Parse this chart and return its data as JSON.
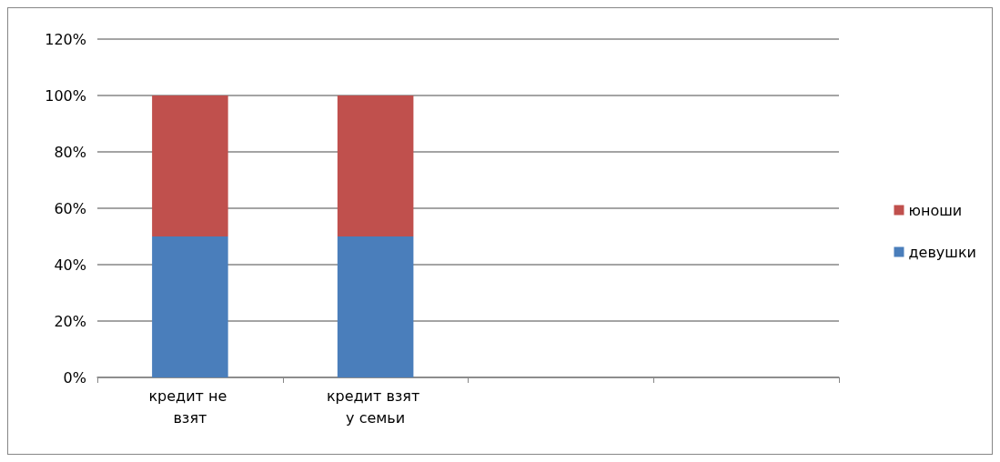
{
  "chart_data": {
    "type": "bar",
    "stacked": true,
    "categories": [
      "кредит не взят",
      "кредит взят у семьи",
      null,
      null
    ],
    "series": [
      {
        "name": "девушки",
        "color": "#4a7ebb",
        "values": [
          50,
          50,
          null,
          null
        ]
      },
      {
        "name": "юноши",
        "color": "#c0504d",
        "values": [
          50,
          50,
          null,
          null
        ]
      }
    ],
    "ylim": [
      0,
      120
    ],
    "yticks": [
      {
        "value": 0,
        "label": "0%"
      },
      {
        "value": 20,
        "label": "20%"
      },
      {
        "value": 40,
        "label": "40%"
      },
      {
        "value": 60,
        "label": "60%"
      },
      {
        "value": 80,
        "label": "80%"
      },
      {
        "value": 100,
        "label": "100%"
      },
      {
        "value": 120,
        "label": "120%"
      }
    ],
    "grid": "y",
    "legend": "right"
  }
}
